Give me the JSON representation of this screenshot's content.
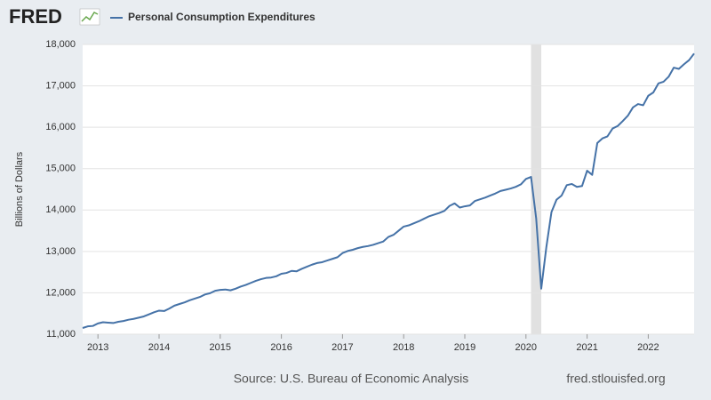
{
  "chart_data": {
    "type": "line",
    "logo": "FRED",
    "title": "Personal Consumption Expenditures",
    "ylabel": "Billions of Dollars",
    "source": "Source: U.S. Bureau of Economic Analysis",
    "site": "fred.stlouisfed.org",
    "xlim": [
      2012.75,
      2022.75
    ],
    "xticks": [
      2013,
      2014,
      2015,
      2016,
      2017,
      2018,
      2019,
      2020,
      2021,
      2022
    ],
    "ylim": [
      11000,
      18000
    ],
    "yticks": [
      {
        "value": 11000,
        "label": "11,000"
      },
      {
        "value": 12000,
        "label": "12,000"
      },
      {
        "value": 13000,
        "label": "13,000"
      },
      {
        "value": 14000,
        "label": "14,000"
      },
      {
        "value": 15000,
        "label": "15,000"
      },
      {
        "value": 16000,
        "label": "16,000"
      },
      {
        "value": 17000,
        "label": "17,000"
      },
      {
        "value": 18000,
        "label": "18,000"
      }
    ],
    "grid": true,
    "shaded_ranges": [
      [
        2020.083,
        2020.25
      ]
    ],
    "x": [
      2012.75,
      2012.833,
      2012.917,
      2013,
      2013.083,
      2013.167,
      2013.25,
      2013.333,
      2013.417,
      2013.5,
      2013.583,
      2013.667,
      2013.75,
      2013.833,
      2013.917,
      2014,
      2014.083,
      2014.167,
      2014.25,
      2014.333,
      2014.417,
      2014.5,
      2014.583,
      2014.667,
      2014.75,
      2014.833,
      2014.917,
      2015,
      2015.083,
      2015.167,
      2015.25,
      2015.333,
      2015.417,
      2015.5,
      2015.583,
      2015.667,
      2015.75,
      2015.833,
      2015.917,
      2016,
      2016.083,
      2016.167,
      2016.25,
      2016.333,
      2016.417,
      2016.5,
      2016.583,
      2016.667,
      2016.75,
      2016.833,
      2016.917,
      2017,
      2017.083,
      2017.167,
      2017.25,
      2017.333,
      2017.417,
      2017.5,
      2017.583,
      2017.667,
      2017.75,
      2017.833,
      2017.917,
      2018,
      2018.083,
      2018.167,
      2018.25,
      2018.333,
      2018.417,
      2018.5,
      2018.583,
      2018.667,
      2018.75,
      2018.833,
      2018.917,
      2019,
      2019.083,
      2019.167,
      2019.25,
      2019.333,
      2019.417,
      2019.5,
      2019.583,
      2019.667,
      2019.75,
      2019.833,
      2019.917,
      2020,
      2020.083,
      2020.167,
      2020.25,
      2020.333,
      2020.417,
      2020.5,
      2020.583,
      2020.667,
      2020.75,
      2020.833,
      2020.917,
      2021,
      2021.083,
      2021.167,
      2021.25,
      2021.333,
      2021.417,
      2021.5,
      2021.583,
      2021.667,
      2021.75,
      2021.833,
      2021.917,
      2022,
      2022.083,
      2022.167,
      2022.25,
      2022.333,
      2022.417,
      2022.5,
      2022.583,
      2022.667,
      2022.75
    ],
    "series": [
      {
        "name": "Personal Consumption Expenditures",
        "color": "#4572a7",
        "values": [
          11150,
          11190,
          11200,
          11260,
          11290,
          11280,
          11270,
          11300,
          11320,
          11350,
          11370,
          11400,
          11430,
          11480,
          11530,
          11570,
          11560,
          11620,
          11690,
          11730,
          11770,
          11820,
          11860,
          11900,
          11960,
          11990,
          12050,
          12070,
          12080,
          12060,
          12100,
          12150,
          12190,
          12240,
          12290,
          12330,
          12360,
          12370,
          12400,
          12460,
          12480,
          12530,
          12520,
          12580,
          12630,
          12680,
          12720,
          12740,
          12780,
          12820,
          12860,
          12960,
          13010,
          13040,
          13080,
          13110,
          13130,
          13160,
          13200,
          13240,
          13350,
          13400,
          13500,
          13600,
          13630,
          13680,
          13730,
          13790,
          13850,
          13890,
          13930,
          13980,
          14100,
          14160,
          14060,
          14090,
          14110,
          14220,
          14260,
          14300,
          14350,
          14400,
          14460,
          14490,
          14520,
          14560,
          14620,
          14750,
          14800,
          13800,
          12100,
          13100,
          13950,
          14250,
          14350,
          14600,
          14630,
          14560,
          14580,
          14950,
          14850,
          15620,
          15730,
          15780,
          15970,
          16030,
          16150,
          16280,
          16480,
          16560,
          16530,
          16760,
          16840,
          17060,
          17100,
          17220,
          17440,
          17410,
          17520,
          17620,
          17780
        ]
      }
    ]
  }
}
